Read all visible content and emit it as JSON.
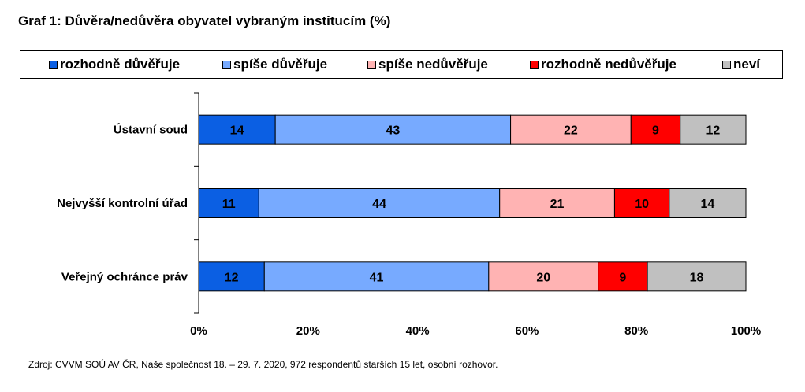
{
  "title": "Graf 1: Důvěra/nedůvěra obyvatel vybraným institucím (%)",
  "source": "Zdroj: CVVM SOÚ AV ČR, Naše společnost 18. – 29. 7. 2020, 972 respondentů starších 15 let, osobní rozhovor.",
  "chart_data": {
    "type": "bar",
    "orientation": "horizontal",
    "stacked": "100%",
    "categories": [
      "Ústavní soud",
      "Nejvyšší kontrolní úřad",
      "Veřejný ochránce práv"
    ],
    "series": [
      {
        "name": "rozhodně důvěřuje",
        "color": "#0b5fe3",
        "values": [
          14,
          11,
          12
        ]
      },
      {
        "name": "spíše důvěřuje",
        "color": "#77aaff",
        "values": [
          43,
          44,
          41
        ]
      },
      {
        "name": "spíše nedůvěřuje",
        "color": "#ffb3b3",
        "values": [
          22,
          21,
          20
        ]
      },
      {
        "name": "rozhodně nedůvěřuje",
        "color": "#ff0000",
        "values": [
          9,
          10,
          9
        ]
      },
      {
        "name": "neví",
        "color": "#c0c0c0",
        "values": [
          12,
          14,
          18
        ]
      }
    ],
    "x_ticks": [
      "0%",
      "20%",
      "40%",
      "60%",
      "80%",
      "100%"
    ],
    "xlim": [
      0,
      100
    ],
    "grid": false,
    "legend_position": "top"
  }
}
